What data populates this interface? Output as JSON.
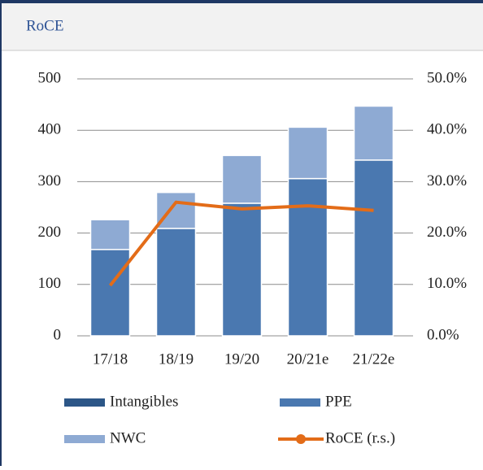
{
  "chart_data": {
    "type": "bar",
    "title": "RoCE",
    "categories": [
      "17/18",
      "18/19",
      "19/20",
      "20/21e",
      "21/22e"
    ],
    "series": [
      {
        "name": "Intangibles",
        "color": "#2c5687",
        "values": [
          0,
          0,
          0,
          0,
          0
        ]
      },
      {
        "name": "PPE",
        "color": "#4a78b0",
        "values": [
          168,
          209,
          258,
          306,
          342
        ]
      },
      {
        "name": "NWC",
        "color": "#8eaad3",
        "values": [
          58,
          70,
          93,
          100,
          105
        ]
      },
      {
        "name": "RoCE (r.s.)",
        "color": "#e36c18",
        "type": "line",
        "axis": "y2",
        "values": [
          9.8,
          26.0,
          24.7,
          25.3,
          24.4
        ]
      }
    ],
    "stacked": true,
    "ylim": [
      0,
      500
    ],
    "yticks": [
      0,
      100,
      200,
      300,
      400,
      500
    ],
    "y2lim": [
      0,
      50
    ],
    "y2ticks": [
      {
        "value": 0,
        "label": "0.0%"
      },
      {
        "value": 10,
        "label": "10.0%"
      },
      {
        "value": 20,
        "label": "20.0%"
      },
      {
        "value": 30,
        "label": "30.0%"
      },
      {
        "value": 40,
        "label": "40.0%"
      },
      {
        "value": 50,
        "label": "50.0%"
      }
    ],
    "grid": true,
    "legend": "bottom"
  }
}
